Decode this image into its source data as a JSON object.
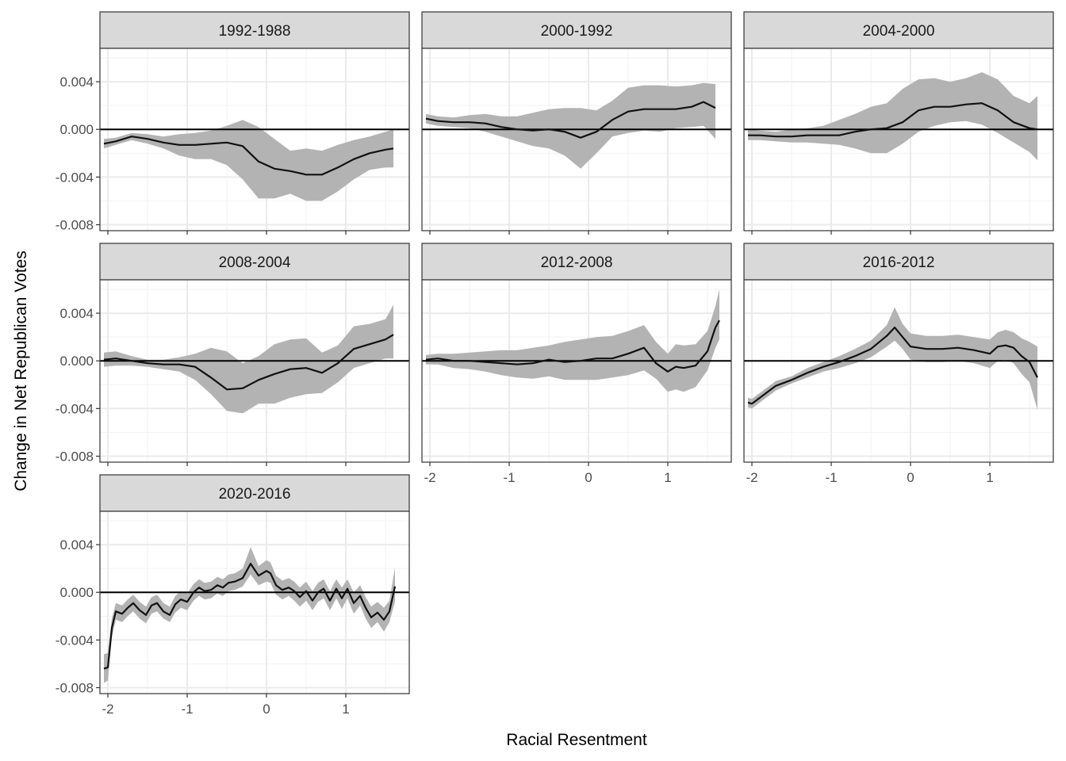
{
  "chart_data": {
    "type": "line",
    "xlabel": "Racial Resentment",
    "ylabel": "Change in Net Republican Votes",
    "xlim": [
      -2.1,
      1.8
    ],
    "ylim": [
      -0.0085,
      0.0068
    ],
    "x_ticks": [
      -2,
      -1,
      0,
      1
    ],
    "x_tick_labels": [
      "-2",
      "-1",
      "0",
      "1"
    ],
    "y_ticks": [
      -0.008,
      -0.004,
      0.0,
      0.004
    ],
    "y_tick_labels": [
      "-0.008",
      "-0.004",
      "0.000",
      "0.004"
    ],
    "reference_line_y": 0,
    "grid": true,
    "colors": {
      "line": "#111111",
      "ribbon": "#b3b3b3",
      "strip": "#d9d9d9",
      "panel_border": "#333333",
      "grid": "#ebebeb"
    },
    "panels": [
      {
        "label": "1992-1988",
        "x": [
          -2.05,
          -1.9,
          -1.7,
          -1.5,
          -1.3,
          -1.1,
          -0.9,
          -0.7,
          -0.5,
          -0.3,
          -0.1,
          0.1,
          0.3,
          0.5,
          0.7,
          0.9,
          1.1,
          1.3,
          1.5,
          1.6
        ],
        "y": [
          -0.0012,
          -0.001,
          -0.0006,
          -0.0008,
          -0.0011,
          -0.0013,
          -0.0013,
          -0.0012,
          -0.0011,
          -0.0014,
          -0.0027,
          -0.0033,
          -0.0035,
          -0.0038,
          -0.0038,
          -0.0032,
          -0.0025,
          -0.002,
          -0.0017,
          -0.0016
        ],
        "lower": [
          -0.0016,
          -0.0013,
          -0.0009,
          -0.0012,
          -0.0016,
          -0.0022,
          -0.0025,
          -0.0025,
          -0.003,
          -0.0042,
          -0.0058,
          -0.0058,
          -0.0054,
          -0.006,
          -0.006,
          -0.0052,
          -0.0042,
          -0.0034,
          -0.0032,
          -0.0032
        ],
        "upper": [
          -0.0008,
          -0.0007,
          -0.0003,
          -0.0004,
          -0.0006,
          -0.0004,
          -0.0003,
          -0.0001,
          0.0003,
          0.0008,
          0.0002,
          -0.0008,
          -0.0018,
          -0.0016,
          -0.0018,
          -0.0013,
          -0.0009,
          -0.0006,
          -0.0002,
          0.0
        ]
      },
      {
        "label": "2000-1992",
        "x": [
          -2.05,
          -1.9,
          -1.7,
          -1.5,
          -1.3,
          -1.1,
          -0.9,
          -0.7,
          -0.5,
          -0.3,
          -0.1,
          0.1,
          0.3,
          0.5,
          0.7,
          0.9,
          1.1,
          1.3,
          1.45,
          1.6
        ],
        "y": [
          0.0009,
          0.0007,
          0.0006,
          0.0006,
          0.0005,
          0.0002,
          0.0,
          -0.0001,
          0.0,
          -0.0002,
          -0.0007,
          -0.0002,
          0.0008,
          0.0015,
          0.0017,
          0.0017,
          0.0017,
          0.0019,
          0.0023,
          0.0018
        ],
        "lower": [
          0.0005,
          0.0003,
          0.0002,
          0.0001,
          -0.0002,
          -0.0006,
          -0.001,
          -0.0014,
          -0.0016,
          -0.0022,
          -0.0033,
          -0.002,
          -0.0006,
          -0.0003,
          -0.0001,
          -0.0002,
          0.0001,
          0.0002,
          0.0003,
          -0.0008
        ],
        "upper": [
          0.0013,
          0.0011,
          0.001,
          0.0012,
          0.0013,
          0.0011,
          0.0011,
          0.0014,
          0.0017,
          0.0018,
          0.0018,
          0.0016,
          0.0024,
          0.0035,
          0.0037,
          0.0037,
          0.0036,
          0.0037,
          0.0039,
          0.0038
        ]
      },
      {
        "label": "2004-2000",
        "x": [
          -2.05,
          -1.9,
          -1.7,
          -1.5,
          -1.3,
          -1.1,
          -0.9,
          -0.7,
          -0.5,
          -0.3,
          -0.1,
          0.1,
          0.3,
          0.5,
          0.7,
          0.9,
          1.1,
          1.3,
          1.5,
          1.6
        ],
        "y": [
          -0.0005,
          -0.0005,
          -0.0006,
          -0.0006,
          -0.0005,
          -0.0005,
          -0.0005,
          -0.0002,
          0.0,
          0.0001,
          0.0006,
          0.0016,
          0.0019,
          0.0019,
          0.0021,
          0.0022,
          0.0016,
          0.0006,
          0.0001,
          0.0
        ],
        "lower": [
          -0.0009,
          -0.0009,
          -0.001,
          -0.0011,
          -0.0011,
          -0.0012,
          -0.0013,
          -0.0016,
          -0.002,
          -0.002,
          -0.0012,
          -0.0002,
          0.0003,
          0.0006,
          0.0007,
          0.0004,
          -0.0003,
          -0.0011,
          -0.0019,
          -0.0026
        ],
        "upper": [
          0.0,
          -0.0001,
          -0.0002,
          0.0,
          0.0001,
          0.0003,
          0.0008,
          0.0013,
          0.0019,
          0.0022,
          0.0034,
          0.0042,
          0.0043,
          0.004,
          0.0043,
          0.0048,
          0.0042,
          0.0028,
          0.0022,
          0.0028
        ]
      },
      {
        "label": "2008-2004",
        "x": [
          -2.05,
          -1.9,
          -1.7,
          -1.5,
          -1.3,
          -1.1,
          -0.9,
          -0.7,
          -0.5,
          -0.3,
          -0.1,
          0.1,
          0.3,
          0.5,
          0.7,
          0.9,
          1.1,
          1.3,
          1.5,
          1.6
        ],
        "y": [
          0.0001,
          0.0002,
          0.0,
          -0.0002,
          -0.0003,
          -0.0003,
          -0.0005,
          -0.0014,
          -0.0024,
          -0.0023,
          -0.0016,
          -0.0011,
          -0.0007,
          -0.0006,
          -0.001,
          -0.0002,
          0.001,
          0.0014,
          0.0018,
          0.0022
        ],
        "lower": [
          -0.0005,
          -0.0004,
          -0.0004,
          -0.0005,
          -0.0007,
          -0.0009,
          -0.0016,
          -0.0028,
          -0.0042,
          -0.0044,
          -0.0036,
          -0.0036,
          -0.0031,
          -0.0028,
          -0.0027,
          -0.0018,
          -0.0006,
          -0.0002,
          0.0002,
          0.0002
        ],
        "upper": [
          0.0007,
          0.0008,
          0.0004,
          0.0001,
          0.0001,
          0.0003,
          0.0006,
          0.0011,
          0.0008,
          -0.0002,
          0.0004,
          0.0014,
          0.0018,
          0.0019,
          0.0007,
          0.0013,
          0.0029,
          0.0031,
          0.0035,
          0.0047
        ]
      },
      {
        "label": "2012-2008",
        "x": [
          -2.05,
          -1.9,
          -1.7,
          -1.5,
          -1.3,
          -1.1,
          -0.9,
          -0.7,
          -0.5,
          -0.3,
          -0.1,
          0.1,
          0.3,
          0.5,
          0.7,
          0.85,
          1.0,
          1.1,
          1.2,
          1.35,
          1.5,
          1.6,
          1.65
        ],
        "y": [
          0.0001,
          0.0002,
          0.0,
          0.0,
          -0.0001,
          -0.0002,
          -0.0003,
          -0.0002,
          0.0001,
          -0.0001,
          0.0,
          0.0002,
          0.0002,
          0.0006,
          0.0011,
          -0.0002,
          -0.0009,
          -0.0005,
          -0.0006,
          -0.0004,
          0.0008,
          0.0028,
          0.0034
        ],
        "lower": [
          -0.0003,
          -0.0003,
          -0.0006,
          -0.0007,
          -0.0009,
          -0.0012,
          -0.0014,
          -0.0015,
          -0.0013,
          -0.0016,
          -0.0016,
          -0.0016,
          -0.0014,
          -0.0012,
          -0.0008,
          -0.0015,
          -0.0026,
          -0.0024,
          -0.0026,
          -0.0022,
          -0.0008,
          0.0011,
          0.0018
        ],
        "upper": [
          0.0005,
          0.0006,
          0.0006,
          0.0007,
          0.0008,
          0.0009,
          0.0009,
          0.0011,
          0.0013,
          0.0016,
          0.0018,
          0.002,
          0.0021,
          0.0025,
          0.003,
          0.0016,
          0.0006,
          0.0014,
          0.0013,
          0.0014,
          0.0025,
          0.0046,
          0.006
        ]
      },
      {
        "label": "2016-2012",
        "x": [
          -2.05,
          -2.0,
          -1.9,
          -1.7,
          -1.5,
          -1.3,
          -1.1,
          -0.9,
          -0.7,
          -0.5,
          -0.3,
          -0.2,
          -0.1,
          0.0,
          0.2,
          0.4,
          0.6,
          0.8,
          1.0,
          1.1,
          1.2,
          1.3,
          1.4,
          1.5,
          1.6
        ],
        "y": [
          -0.0035,
          -0.0036,
          -0.0031,
          -0.0021,
          -0.0016,
          -0.001,
          -0.0005,
          -0.0001,
          0.0004,
          0.001,
          0.0021,
          0.0028,
          0.002,
          0.0012,
          0.001,
          0.001,
          0.0011,
          0.0009,
          0.0006,
          0.0012,
          0.0013,
          0.0011,
          0.0004,
          -0.0001,
          -0.0014
        ],
        "lower": [
          -0.0039,
          -0.004,
          -0.0035,
          -0.0025,
          -0.0019,
          -0.0014,
          -0.0009,
          -0.0006,
          -0.0002,
          0.0003,
          0.0012,
          0.0017,
          0.001,
          0.0001,
          -0.0001,
          -0.0001,
          0.0,
          -0.0002,
          -0.0006,
          0.0,
          0.0001,
          -0.0002,
          -0.0011,
          -0.0018,
          -0.0041
        ],
        "upper": [
          -0.0031,
          -0.0032,
          -0.0027,
          -0.0017,
          -0.0013,
          -0.0006,
          -0.0001,
          0.0004,
          0.001,
          0.0017,
          0.003,
          0.0045,
          0.0031,
          0.0023,
          0.0021,
          0.0021,
          0.0022,
          0.002,
          0.0018,
          0.0024,
          0.0026,
          0.0024,
          0.0019,
          0.0016,
          0.0012
        ]
      },
      {
        "label": "2020-2016",
        "x": [
          -2.05,
          -2.0,
          -1.95,
          -1.9,
          -1.82,
          -1.75,
          -1.68,
          -1.6,
          -1.52,
          -1.45,
          -1.38,
          -1.3,
          -1.22,
          -1.15,
          -1.08,
          -1.0,
          -0.92,
          -0.85,
          -0.78,
          -0.7,
          -0.62,
          -0.55,
          -0.48,
          -0.4,
          -0.3,
          -0.2,
          -0.1,
          0.0,
          0.05,
          0.12,
          0.2,
          0.28,
          0.35,
          0.42,
          0.5,
          0.58,
          0.65,
          0.72,
          0.8,
          0.88,
          0.95,
          1.02,
          1.1,
          1.18,
          1.25,
          1.32,
          1.4,
          1.48,
          1.55,
          1.62
        ],
        "y": [
          -0.0064,
          -0.0063,
          -0.003,
          -0.0016,
          -0.0018,
          -0.0013,
          -0.0009,
          -0.0015,
          -0.0019,
          -0.0011,
          -0.0009,
          -0.0016,
          -0.0019,
          -0.001,
          -0.0006,
          -0.0008,
          0.0,
          0.0004,
          0.0001,
          0.0002,
          0.0006,
          0.0004,
          0.0008,
          0.0009,
          0.0012,
          0.0024,
          0.0014,
          0.0018,
          0.0016,
          0.0006,
          0.0002,
          0.0004,
          0.0001,
          -0.0004,
          0.0001,
          -0.0007,
          0.0,
          0.0003,
          -0.0007,
          0.0003,
          -0.0005,
          0.0003,
          -0.0009,
          -0.0003,
          -0.0013,
          -0.0021,
          -0.0017,
          -0.0023,
          -0.0016,
          0.0005
        ],
        "lower": [
          -0.0076,
          -0.0074,
          -0.0038,
          -0.0023,
          -0.0025,
          -0.002,
          -0.0016,
          -0.0022,
          -0.0026,
          -0.0018,
          -0.0016,
          -0.0022,
          -0.0025,
          -0.0017,
          -0.0013,
          -0.0015,
          -0.0007,
          -0.0003,
          -0.0006,
          -0.0005,
          -0.0001,
          -0.0003,
          0.0001,
          0.0002,
          0.0005,
          0.0015,
          0.0006,
          0.0009,
          0.0008,
          -0.0002,
          -0.0006,
          -0.0003,
          -0.0007,
          -0.0012,
          -0.0007,
          -0.0015,
          -0.0008,
          -0.0005,
          -0.0015,
          -0.0005,
          -0.0014,
          -0.0005,
          -0.0018,
          -0.0011,
          -0.0022,
          -0.003,
          -0.0025,
          -0.0033,
          -0.0025,
          -0.0008
        ],
        "upper": [
          -0.0052,
          -0.0051,
          -0.0022,
          -0.0009,
          -0.0011,
          -0.0006,
          -0.0002,
          -0.0008,
          -0.0012,
          -0.0004,
          -0.0002,
          -0.0009,
          -0.0012,
          -0.0003,
          0.0001,
          -0.0001,
          0.0007,
          0.0011,
          0.0008,
          0.0009,
          0.0013,
          0.0011,
          0.0015,
          0.0016,
          0.002,
          0.0038,
          0.0022,
          0.0027,
          0.0025,
          0.0014,
          0.001,
          0.0012,
          0.0009,
          0.0004,
          0.0009,
          0.0001,
          0.0008,
          0.0011,
          0.0001,
          0.0011,
          0.0004,
          0.0011,
          0.0,
          0.0006,
          -0.0004,
          -0.0012,
          -0.0008,
          -0.0013,
          -0.0007,
          0.0021
        ]
      }
    ]
  }
}
